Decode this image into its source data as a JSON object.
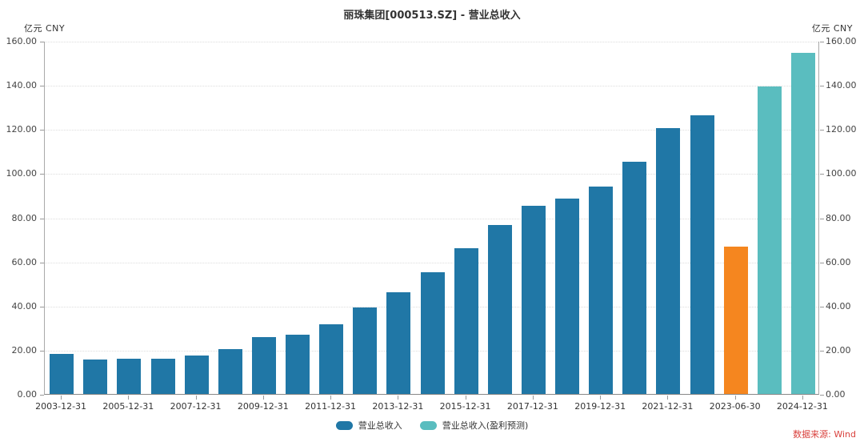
{
  "chart_data": {
    "type": "bar",
    "title": "丽珠集团[000513.SZ] - 营业总收入",
    "source_note": "数据来源: Wind",
    "y_axis": {
      "unit_left": "亿元 CNY",
      "unit_right": "亿元 CNY",
      "min": 0,
      "max": 160,
      "tick_step": 20,
      "tick_labels": [
        "0.00",
        "20.00",
        "40.00",
        "60.00",
        "80.00",
        "100.00",
        "120.00",
        "140.00",
        "160.00"
      ],
      "grid": "dotted-horizontal"
    },
    "x_axis": {
      "labeled_every": 2,
      "tick_labels": [
        "2003-12-31",
        "2005-12-31",
        "2007-12-31",
        "2009-12-31",
        "2011-12-31",
        "2013-12-31",
        "2015-12-31",
        "2017-12-31",
        "2019-12-31",
        "2021-12-31",
        "2023-06-30",
        "2024-12-31"
      ]
    },
    "colors": {
      "actual": "#2077a6",
      "interim": "#f5861f",
      "forecast": "#5abdbf"
    },
    "legend": {
      "position": "bottom-center",
      "items": [
        {
          "label": "营业总收入",
          "color": "#2077a6"
        },
        {
          "label": "营业总收入(盈利预测)",
          "color": "#5abdbf"
        }
      ]
    },
    "bars": [
      {
        "date": "2003-12-31",
        "value": 18.1,
        "kind": "actual"
      },
      {
        "date": "2004-12-31",
        "value": 15.7,
        "kind": "actual"
      },
      {
        "date": "2005-12-31",
        "value": 16.1,
        "kind": "actual"
      },
      {
        "date": "2006-12-31",
        "value": 15.9,
        "kind": "actual"
      },
      {
        "date": "2007-12-31",
        "value": 17.4,
        "kind": "actual"
      },
      {
        "date": "2008-12-31",
        "value": 20.4,
        "kind": "actual"
      },
      {
        "date": "2009-12-31",
        "value": 25.8,
        "kind": "actual"
      },
      {
        "date": "2010-12-31",
        "value": 27.0,
        "kind": "actual"
      },
      {
        "date": "2011-12-31",
        "value": 31.5,
        "kind": "actual"
      },
      {
        "date": "2012-12-31",
        "value": 39.3,
        "kind": "actual"
      },
      {
        "date": "2013-12-31",
        "value": 46.1,
        "kind": "actual"
      },
      {
        "date": "2014-12-31",
        "value": 55.3,
        "kind": "actual"
      },
      {
        "date": "2015-12-31",
        "value": 66.1,
        "kind": "actual"
      },
      {
        "date": "2016-12-31",
        "value": 76.4,
        "kind": "actual"
      },
      {
        "date": "2017-12-31",
        "value": 85.2,
        "kind": "actual"
      },
      {
        "date": "2018-12-31",
        "value": 88.6,
        "kind": "actual"
      },
      {
        "date": "2019-12-31",
        "value": 93.9,
        "kind": "actual"
      },
      {
        "date": "2020-12-31",
        "value": 105.2,
        "kind": "actual"
      },
      {
        "date": "2021-12-31",
        "value": 120.6,
        "kind": "actual"
      },
      {
        "date": "2022-12-31",
        "value": 126.2,
        "kind": "actual"
      },
      {
        "date": "2023-06-30",
        "value": 66.8,
        "kind": "interim"
      },
      {
        "date": "2023-12-31",
        "value": 139.3,
        "kind": "forecast"
      },
      {
        "date": "2024-12-31",
        "value": 154.5,
        "kind": "forecast"
      }
    ]
  }
}
